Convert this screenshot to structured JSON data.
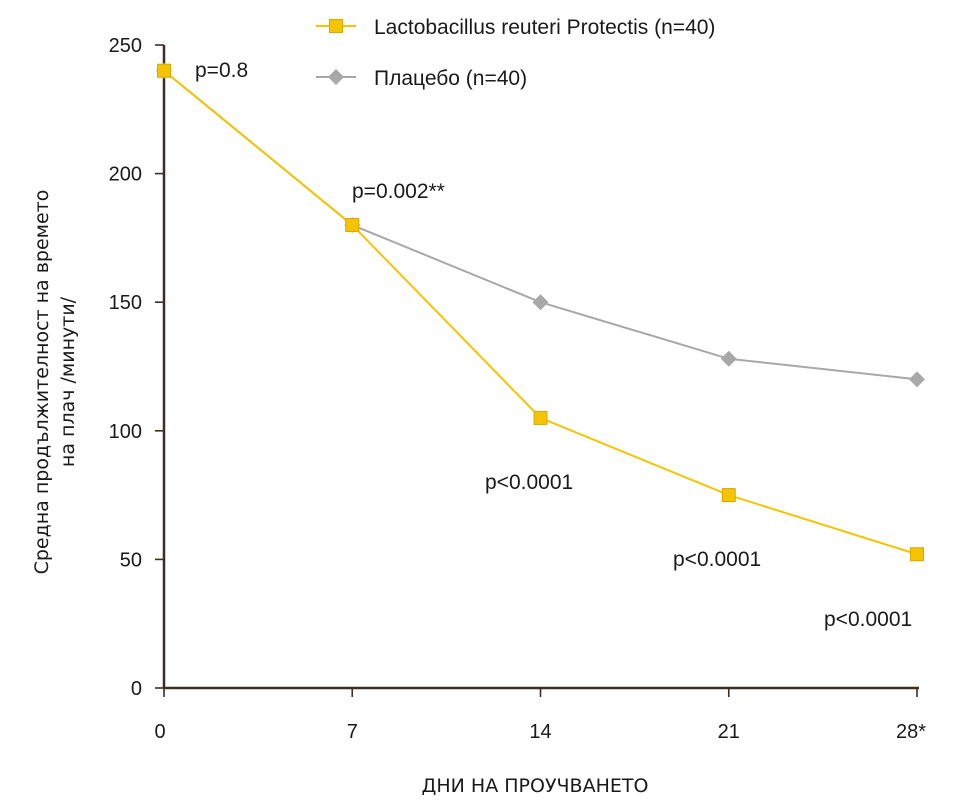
{
  "chart_data": {
    "type": "line",
    "x": [
      "0",
      "7",
      "14",
      "21",
      "28*"
    ],
    "series": [
      {
        "name": "Lactobacillus reuteri Protectis (n=40)",
        "values": [
          240,
          180,
          105,
          75,
          52
        ],
        "color": "#f5c400",
        "marker": "square"
      },
      {
        "name": "Плацебо (n=40)",
        "values": [
          240,
          180,
          150,
          128,
          120
        ],
        "color": "#a8a8a8",
        "marker": "diamond"
      }
    ],
    "ylim": [
      0,
      250
    ],
    "yticks": [
      "0",
      "50",
      "100",
      "150",
      "200",
      "250"
    ],
    "xlabel": "ДНИ НА ПРОУЧВАНЕТО",
    "ylabel_line1": "Средна продължителност на времето",
    "ylabel_line2": "на плач /минути/",
    "annotations": [
      "p=0.8",
      "p=0.002**",
      "p<0.0001",
      "p<0.0001",
      "p<0.0001"
    ],
    "legend_position": "top-right",
    "grid": false,
    "axis_color": "#3b2f24"
  }
}
